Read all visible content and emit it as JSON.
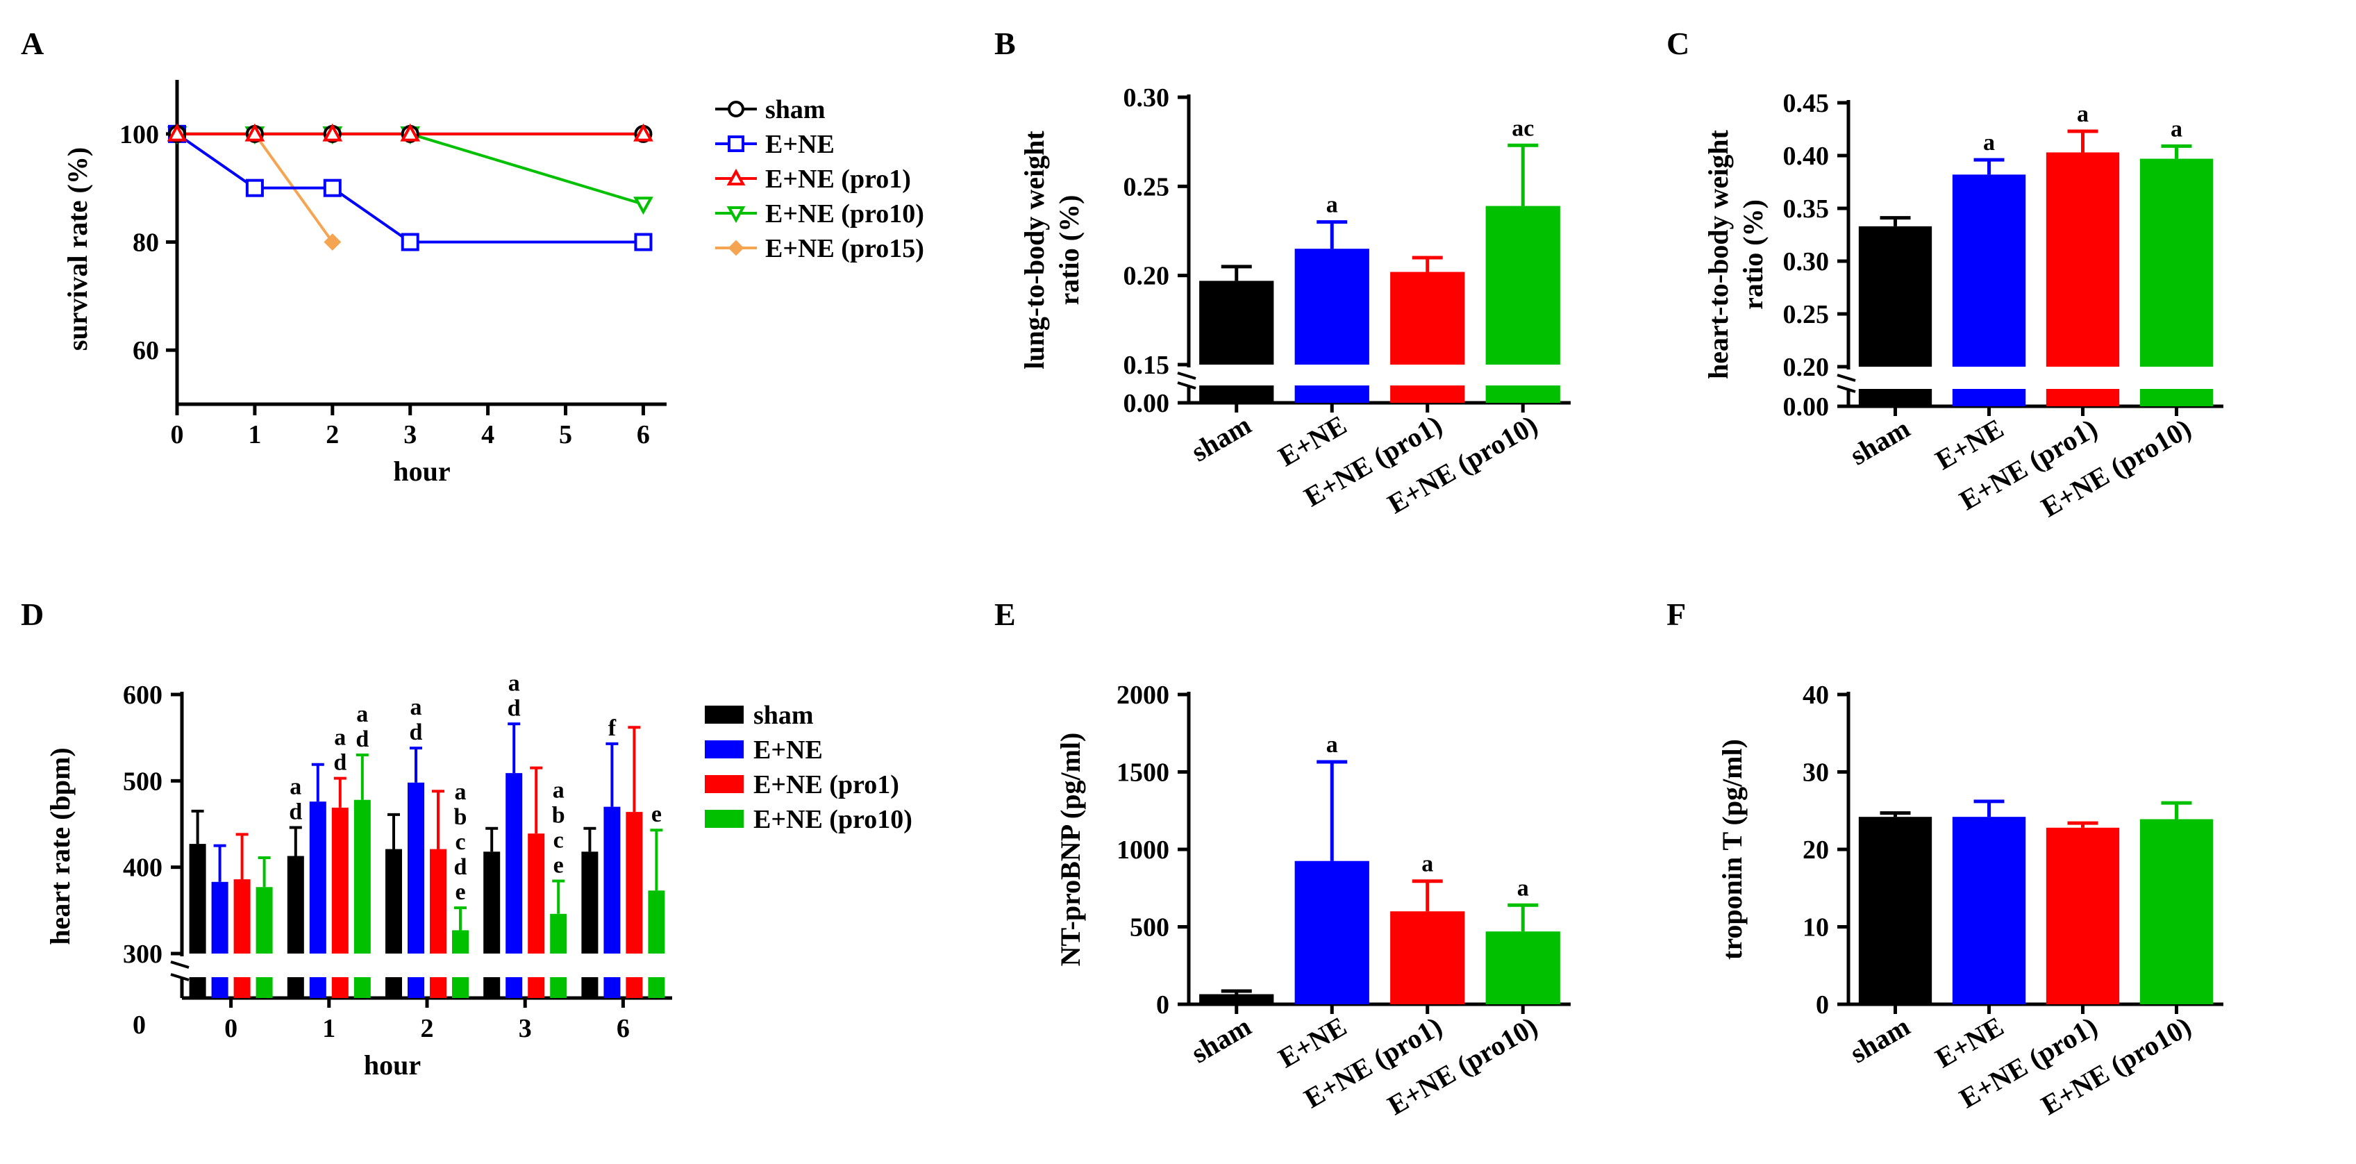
{
  "colors": {
    "sham": "#000000",
    "ene": "#0000ff",
    "pro1": "#ff0000",
    "pro10": "#00c000",
    "pro15": "#f5a552"
  },
  "chart_data": [
    {
      "panel": "A",
      "type": "line",
      "xlabel": "hour",
      "ylabel": "survival rate (%)",
      "xlim": [
        0,
        6.3
      ],
      "ylim": [
        50,
        110
      ],
      "xticks": [
        "0",
        "1",
        "2",
        "3",
        "4",
        "5",
        "6"
      ],
      "yticks": [
        "60",
        "80",
        "100"
      ],
      "legend_position": "right",
      "series": [
        {
          "name": "sham",
          "color": "sham",
          "marker": "circle",
          "x": [
            0,
            1,
            2,
            3,
            6
          ],
          "values": [
            100,
            100,
            100,
            100,
            100
          ]
        },
        {
          "name": "E+NE",
          "color": "ene",
          "marker": "square",
          "x": [
            0,
            1,
            2,
            3,
            6
          ],
          "values": [
            100,
            90,
            90,
            80,
            80
          ]
        },
        {
          "name": "E+NE (pro1)",
          "color": "pro1",
          "marker": "triangle-up",
          "x": [
            0,
            1,
            2,
            3,
            6
          ],
          "values": [
            100,
            100,
            100,
            100,
            100
          ]
        },
        {
          "name": "E+NE (pro10)",
          "color": "pro10",
          "marker": "triangle-down",
          "x": [
            0,
            1,
            2,
            3,
            6
          ],
          "values": [
            100,
            100,
            100,
            100,
            87
          ]
        },
        {
          "name": "E+NE (pro15)",
          "color": "pro15",
          "marker": "diamond",
          "x": [
            0,
            1,
            2
          ],
          "values": [
            100,
            100,
            80
          ]
        }
      ]
    },
    {
      "panel": "B",
      "type": "bar",
      "ylabel": [
        "lung-to-body weight",
        "ratio (%)"
      ],
      "categories": [
        "sham",
        "E+NE",
        "E+NE (pro1)",
        "E+NE (pro10)"
      ],
      "colors": [
        "sham",
        "ene",
        "pro1",
        "pro10"
      ],
      "values": [
        0.197,
        0.215,
        0.202,
        0.239
      ],
      "errors": [
        0.008,
        0.015,
        0.008,
        0.034
      ],
      "annotations": [
        "",
        "a",
        "",
        "ac"
      ],
      "ylim": [
        0.15,
        0.3
      ],
      "yticks": [
        "0.15",
        "0.20",
        "0.25",
        "0.30"
      ],
      "break_tick": "0.00"
    },
    {
      "panel": "C",
      "type": "bar",
      "ylabel": [
        "heart-to-body weight",
        "ratio (%)"
      ],
      "categories": [
        "sham",
        "E+NE",
        "E+NE (pro1)",
        "E+NE (pro10)"
      ],
      "colors": [
        "sham",
        "ene",
        "pro1",
        "pro10"
      ],
      "values": [
        0.333,
        0.382,
        0.403,
        0.397
      ],
      "errors": [
        0.008,
        0.014,
        0.02,
        0.012
      ],
      "annotations": [
        "",
        "a",
        "a",
        "a"
      ],
      "ylim": [
        0.2,
        0.45
      ],
      "yticks": [
        "0.20",
        "0.25",
        "0.30",
        "0.35",
        "0.40",
        "0.45"
      ],
      "ytick_labels": [
        "0.20",
        "0.25",
        "0.30",
        "0.35",
        "0.40",
        "0.45"
      ],
      "break_tick": "0.00"
    },
    {
      "panel": "D",
      "type": "bar",
      "xlabel": "hour",
      "ylabel": "heart rate (bpm)",
      "categories": [
        "0",
        "1",
        "2",
        "3",
        "6"
      ],
      "ylim": [
        300,
        600
      ],
      "yticks": [
        "300",
        "400",
        "500",
        "600"
      ],
      "break_tick": "0",
      "legend_position": "right",
      "series": [
        {
          "name": "sham",
          "color": "sham",
          "values": [
            427,
            413,
            421,
            418,
            418
          ],
          "errors": [
            38,
            33,
            40,
            27,
            27
          ]
        },
        {
          "name": "E+NE",
          "color": "ene",
          "values": [
            383,
            476,
            498,
            509,
            470
          ],
          "errors": [
            42,
            43,
            40,
            57,
            73
          ]
        },
        {
          "name": "E+NE (pro1)",
          "color": "pro1",
          "values": [
            386,
            469,
            421,
            439,
            464
          ],
          "errors": [
            52,
            34,
            67,
            76,
            98
          ]
        },
        {
          "name": "E+NE (pro10)",
          "color": "pro10",
          "values": [
            377,
            478,
            327,
            346,
            373
          ],
          "errors": [
            34,
            52,
            26,
            38,
            70
          ]
        }
      ],
      "annotations": [
        {
          "group": 1,
          "series": 0,
          "lines": [
            "a",
            "d"
          ]
        },
        {
          "group": 1,
          "series": 2,
          "lines": [
            "a",
            "d"
          ]
        },
        {
          "group": 1,
          "series": 3,
          "lines": [
            "a",
            "d"
          ]
        },
        {
          "group": 2,
          "series": 1,
          "lines": [
            "a",
            "d"
          ]
        },
        {
          "group": 2,
          "series": 3,
          "lines": [
            "a",
            "b",
            "c",
            "d",
            "e"
          ]
        },
        {
          "group": 3,
          "series": 1,
          "lines": [
            "a",
            "d"
          ]
        },
        {
          "group": 3,
          "series": 3,
          "lines": [
            "a",
            "b",
            "c",
            "e"
          ]
        },
        {
          "group": 4,
          "series": 1,
          "lines": [
            "f"
          ]
        },
        {
          "group": 4,
          "series": 3,
          "lines": [
            "e"
          ]
        }
      ]
    },
    {
      "panel": "E",
      "type": "bar",
      "ylabel": "NT-proBNP (pg/ml)",
      "categories": [
        "sham",
        "E+NE",
        "E+NE (pro1)",
        "E+NE (pro10)"
      ],
      "colors": [
        "sham",
        "ene",
        "pro1",
        "pro10"
      ],
      "values": [
        65,
        925,
        600,
        470
      ],
      "errors": [
        20,
        640,
        195,
        170
      ],
      "annotations": [
        "",
        "a",
        "a",
        "a"
      ],
      "ylim": [
        0,
        2000
      ],
      "yticks": [
        "0",
        "500",
        "1000",
        "1500",
        "2000"
      ]
    },
    {
      "panel": "F",
      "type": "bar",
      "ylabel": "troponin T (pg/ml)",
      "categories": [
        "sham",
        "E+NE",
        "E+NE (pro1)",
        "E+NE (pro10)"
      ],
      "colors": [
        "sham",
        "ene",
        "pro1",
        "pro10"
      ],
      "values": [
        24.2,
        24.2,
        22.8,
        23.9
      ],
      "errors": [
        0.5,
        2.0,
        0.6,
        2.1
      ],
      "annotations": [
        "",
        "",
        "",
        ""
      ],
      "ylim": [
        0,
        40
      ],
      "yticks": [
        "0",
        "10",
        "20",
        "30",
        "40"
      ]
    }
  ]
}
